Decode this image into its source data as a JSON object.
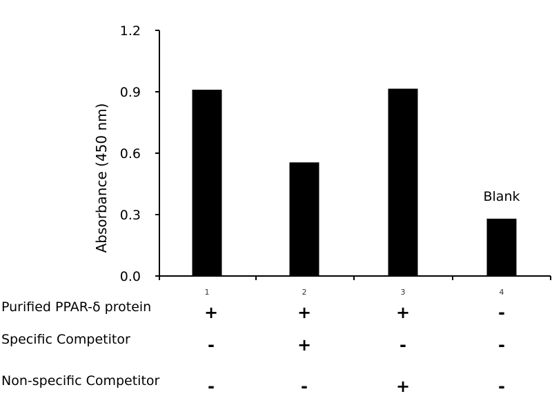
{
  "chart_data": {
    "type": "bar",
    "categories": [
      "1",
      "2",
      "3",
      "4"
    ],
    "values": [
      0.91,
      0.555,
      0.915,
      0.28
    ],
    "title": "",
    "xlabel": "",
    "ylabel": "Absorbance (450 nm)",
    "ylim": [
      0,
      1.2
    ],
    "yticks": [
      "0.0",
      "0.3",
      "0.6",
      "0.9",
      "1.2"
    ],
    "ytick_values": [
      0,
      0.3,
      0.6,
      0.9,
      1.2
    ],
    "bar_color": "#000000",
    "grid": false,
    "annotations": [
      {
        "category": "4",
        "text": "Blank"
      }
    ]
  },
  "conditions": [
    {
      "label": "Purified PPAR-δ protein",
      "signs": [
        "+",
        "+",
        "+",
        "-"
      ]
    },
    {
      "label": "Specific Competitor",
      "signs": [
        "-",
        "+",
        "-",
        "-"
      ]
    },
    {
      "label": "Non-specific Competitor",
      "signs": [
        "-",
        "-",
        "+",
        "-"
      ]
    }
  ]
}
